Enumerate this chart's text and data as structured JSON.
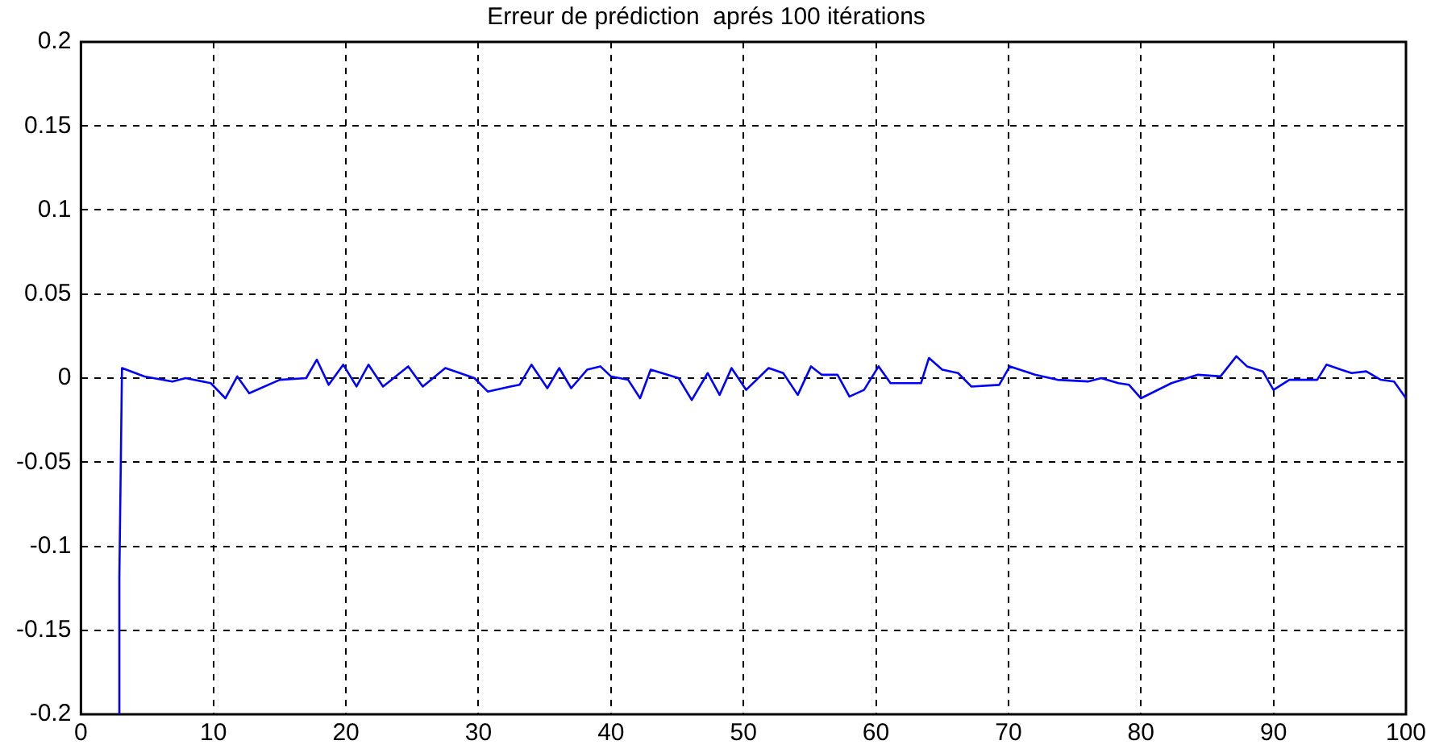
{
  "chart_data": {
    "type": "line",
    "title": "Erreur de prédiction  aprés 100 itérations",
    "x": [
      2.9,
      2.9,
      3.1,
      4.8,
      6.9,
      7.9,
      9.8,
      10.9,
      11.8,
      12.7,
      15.0,
      17.0,
      17.8,
      18.7,
      19.8,
      20.8,
      21.7,
      22.8,
      24.7,
      25.8,
      27.5,
      29.7,
      30.7,
      32.4,
      33.1,
      34.0,
      35.2,
      36.1,
      37.0,
      38.2,
      39.2,
      40.0,
      41.3,
      42.2,
      43.0,
      45.1,
      46.1,
      47.3,
      48.2,
      49.1,
      50.2,
      51.9,
      53.0,
      54.1,
      55.1,
      55.9,
      57.1,
      58.0,
      59.1,
      60.2,
      61.1,
      63.4,
      64.0,
      65.0,
      66.2,
      67.2,
      69.3,
      70.1,
      72.0,
      73.7,
      76.0,
      77.0,
      78.3,
      79.1,
      80.0,
      82.3,
      84.3,
      86.0,
      87.2,
      88.0,
      89.2,
      90.0,
      91.2,
      93.3,
      94.0,
      95.1,
      95.9,
      97.0,
      98.1,
      99.1,
      100.0
    ],
    "series": [
      {
        "color": "#0000ff",
        "values": [
          -0.2,
          -0.119,
          0.006,
          0.001,
          -0.002,
          0,
          -0.003,
          -0.012,
          0.001,
          -0.009,
          -0.001,
          0,
          0.011,
          -0.004,
          0.008,
          -0.005,
          0.008,
          -0.005,
          0.007,
          -0.005,
          0.006,
          0,
          -0.008,
          -0.005,
          -0.004,
          0.008,
          -0.006,
          0.006,
          -0.006,
          0.005,
          0.007,
          0.001,
          -0.001,
          -0.012,
          0.005,
          0,
          -0.013,
          0.003,
          -0.01,
          0.006,
          -0.007,
          0.006,
          0.003,
          -0.01,
          0.007,
          0.002,
          0.002,
          -0.011,
          -0.007,
          0.007,
          -0.003,
          -0.003,
          0.012,
          0.005,
          0.003,
          -0.005,
          -0.004,
          0.007,
          0.002,
          -0.001,
          -0.002,
          0,
          -0.003,
          -0.004,
          -0.012,
          -0.003,
          0.002,
          0.001,
          0.013,
          0.007,
          0.004,
          -0.007,
          -0.001,
          -0.001,
          0.008,
          0.005,
          0.003,
          0.004,
          -0.001,
          -0.002,
          -0.012
        ]
      }
    ],
    "xlim": [
      0,
      100
    ],
    "xticks": [
      0,
      10,
      20,
      30,
      40,
      50,
      60,
      70,
      80,
      90,
      100
    ],
    "ylim": [
      -0.2,
      0.2
    ],
    "yticks": [
      -0.2,
      -0.15,
      -0.1,
      -0.05,
      0,
      0.05,
      0.1,
      0.15,
      0.2
    ],
    "grid": true,
    "legend": false,
    "marker": "none",
    "line_style": "solid"
  }
}
